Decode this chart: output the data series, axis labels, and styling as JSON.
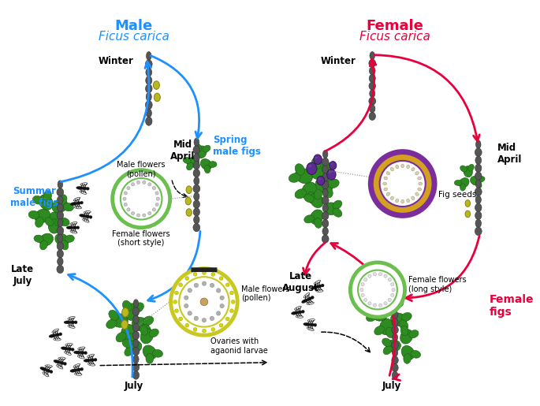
{
  "title_left": "Male",
  "title_left_italic": "Ficus carica",
  "title_right": "Female",
  "title_right_italic": "Ficus carica",
  "title_left_color": "#1E90FF",
  "title_right_color": "#E8003D",
  "arrow_left_color": "#1E90FF",
  "arrow_right_color": "#E8003D",
  "background": "#FFFFFF",
  "branch_color": "#555555",
  "leaf_color": "#2E8B22",
  "fig_male_color": "#B8B820",
  "fig_female_color": "#5B2D8E",
  "wasp_color": "#111111",
  "circle_spring_outer": "#6BBF4E",
  "circle_summer_outer": "#C8C820",
  "circle_female_outer": "#6BBF4E",
  "circle_seeds_outer": "#7B2D9E",
  "circle_seeds_inner": "#D4A020"
}
